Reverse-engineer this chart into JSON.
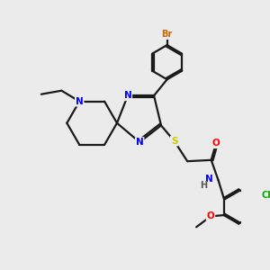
{
  "bg_color": "#ebebeb",
  "bond_color": "#1a1a1a",
  "bond_width": 1.6,
  "atom_colors": {
    "N": "#0000ff",
    "S": "#cccc00",
    "O": "#ff0000",
    "Br": "#cc6600",
    "Cl": "#00aa00",
    "C": "#1a1a1a",
    "H": "#555555"
  },
  "fontsize": 7.5
}
